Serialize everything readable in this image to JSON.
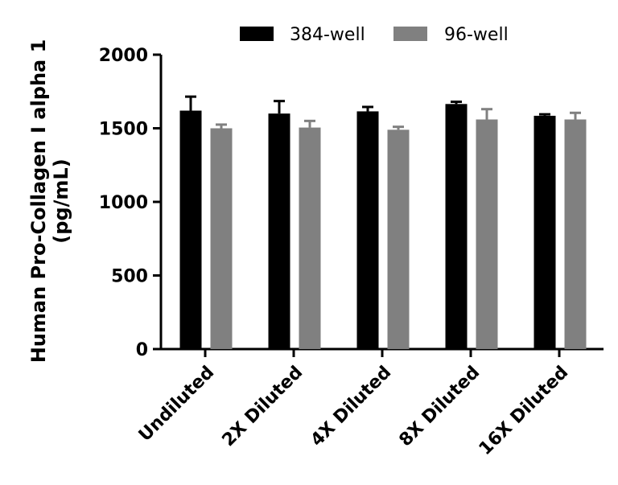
{
  "chart_data": {
    "type": "bar",
    "ylabel_lines": [
      "Human Pro-Collagen I alpha 1",
      "(pg/mL)"
    ],
    "categories": [
      "Undiluted",
      "2X Diluted",
      "4X Diluted",
      "8X Diluted",
      "16X Diluted"
    ],
    "series": [
      {
        "name": "384-well",
        "color": "#000000",
        "values": [
          1620,
          1600,
          1615,
          1665,
          1585
        ],
        "errors": [
          95,
          85,
          30,
          15,
          10
        ]
      },
      {
        "name": "96-well",
        "color": "#808080",
        "values": [
          1500,
          1505,
          1490,
          1560,
          1560
        ],
        "errors": [
          25,
          45,
          20,
          70,
          45
        ]
      }
    ],
    "ylim": [
      0,
      2000
    ],
    "yticks": [
      0,
      500,
      1000,
      1500,
      2000
    ],
    "legend_position": "top",
    "grid": false
  }
}
